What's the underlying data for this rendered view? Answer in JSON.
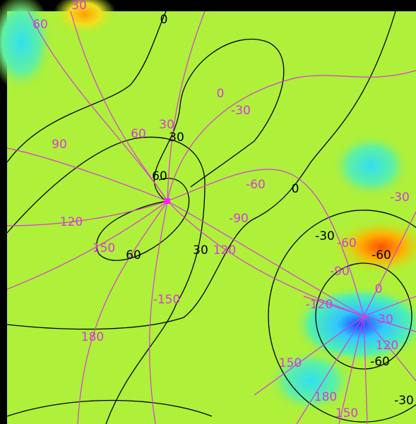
{
  "phase_labels": [
    "30",
    "60",
    "90",
    "60",
    "30",
    "0",
    "-30",
    "-60",
    "-90",
    "120",
    "150",
    "120",
    "-150",
    "180",
    "-60",
    "-90",
    "-30",
    "0",
    "-120",
    "30",
    "120",
    "150",
    "180",
    "150"
  ],
  "amplitude_labels": [
    "0",
    "30",
    "60",
    "0",
    "-30",
    "60",
    "30",
    "-60",
    "-60",
    "-30"
  ]
}
